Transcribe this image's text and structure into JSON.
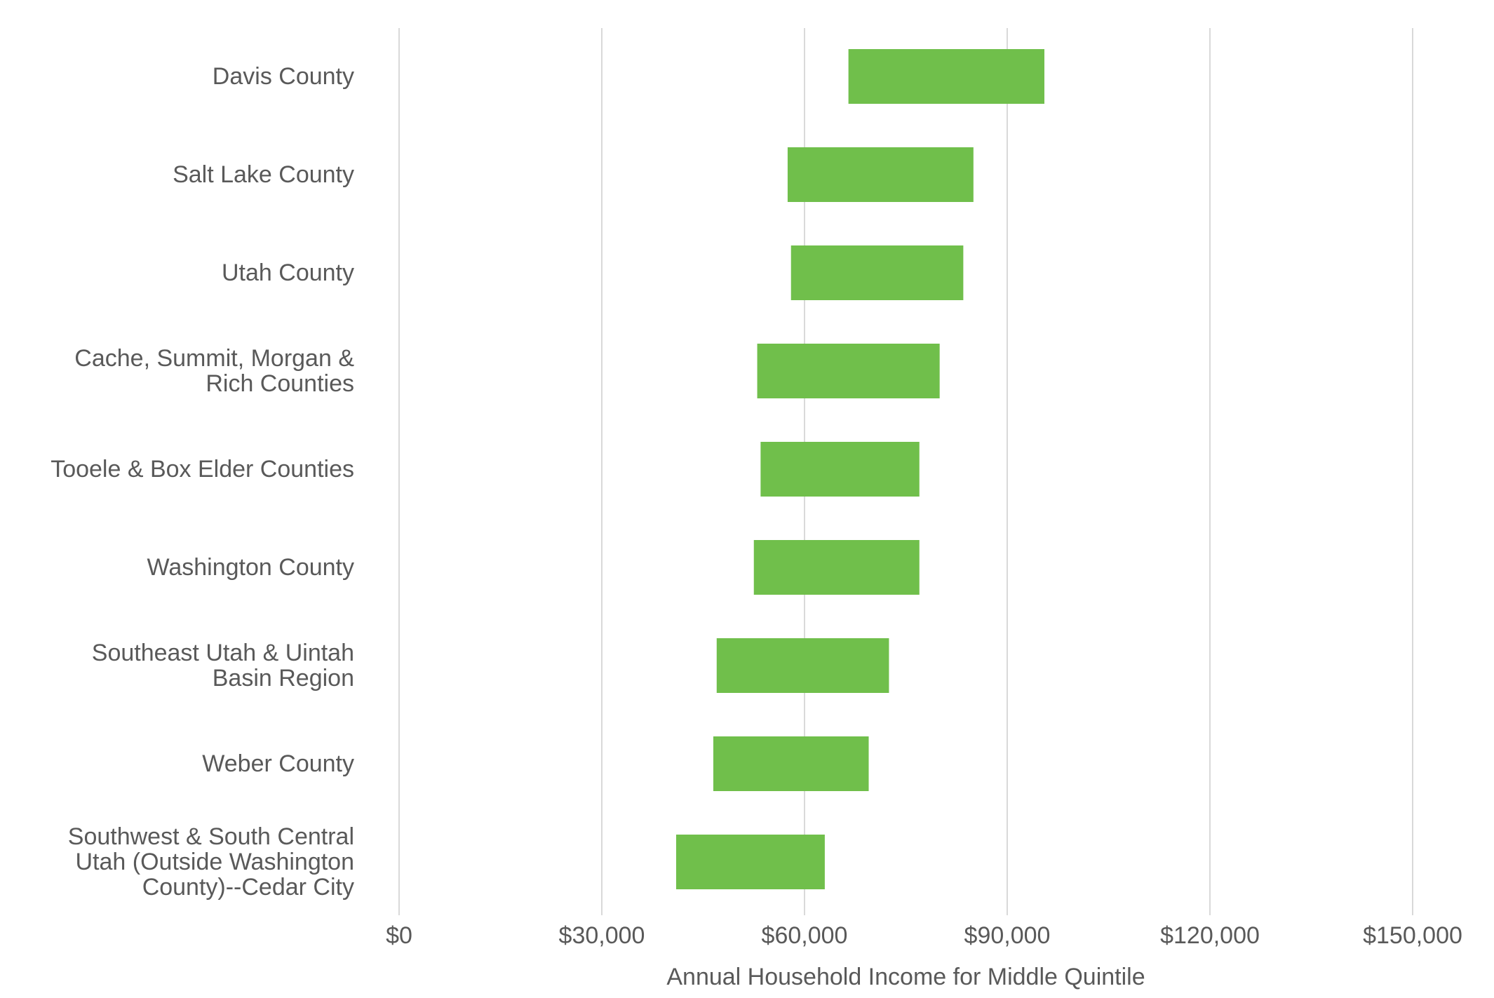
{
  "chart_data": {
    "type": "bar",
    "orientation": "horizontal",
    "subtype": "floating-range",
    "title": "",
    "xlabel": "Annual Household Income for Middle Quintile",
    "ylabel": "",
    "xlim": [
      0,
      160000
    ],
    "x_ticks": [
      0,
      30000,
      60000,
      90000,
      120000,
      150000
    ],
    "x_tick_labels": [
      "$0",
      "$30,000",
      "$60,000",
      "$90,000",
      "$120,000",
      "$150,000"
    ],
    "grid": "vertical",
    "legend": "none",
    "bar_color": "#70bf4b",
    "grid_color": "#d9d9d9",
    "text_color": "#595959",
    "categories": [
      [
        "Davis County"
      ],
      [
        "Salt Lake County"
      ],
      [
        "Utah County"
      ],
      [
        "Cache, Summit, Morgan &",
        "Rich Counties"
      ],
      [
        "Tooele & Box Elder Counties"
      ],
      [
        "Washington County"
      ],
      [
        "Southeast Utah & Uintah",
        "Basin Region"
      ],
      [
        "Weber County"
      ],
      [
        "Southwest & South Central",
        "Utah (Outside Washington",
        "County)--Cedar City"
      ]
    ],
    "ranges": [
      [
        66500,
        95500
      ],
      [
        57500,
        85000
      ],
      [
        58000,
        83500
      ],
      [
        53000,
        80000
      ],
      [
        53500,
        77000
      ],
      [
        52500,
        77000
      ],
      [
        47000,
        72500
      ],
      [
        46500,
        69500
      ],
      [
        41000,
        63000
      ]
    ]
  }
}
